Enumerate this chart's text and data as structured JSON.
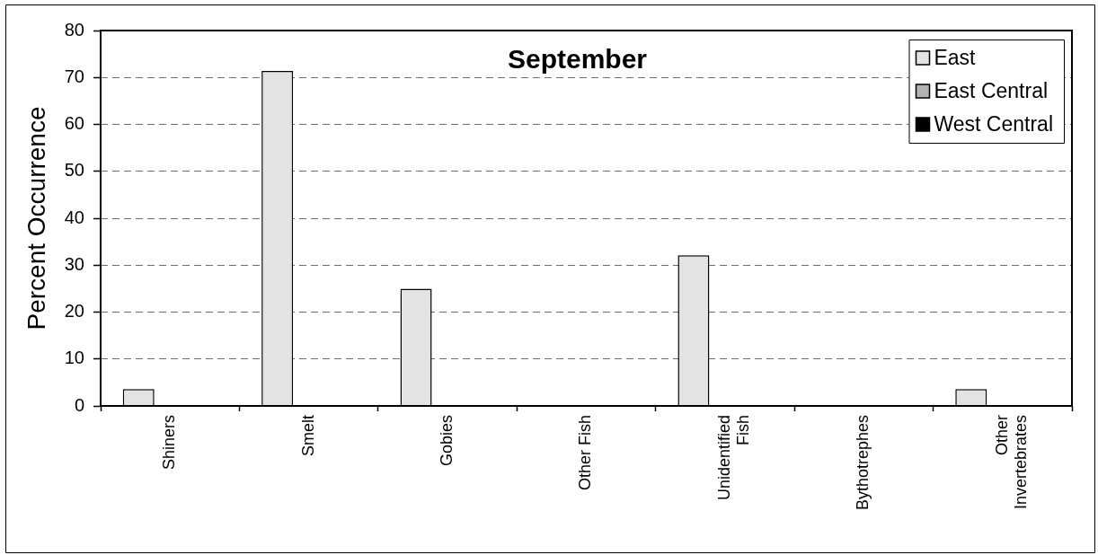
{
  "chart_data": {
    "type": "bar",
    "title": "September",
    "ylabel": "Percent Occurrence",
    "categories": [
      "Shiners",
      "Smelt",
      "Gobies",
      "Other Fish",
      "Unidentified Fish",
      "Bythotrephes",
      "Other Invertebrates"
    ],
    "series": [
      {
        "name": "East",
        "color": "#e3e3e3",
        "values": [
          3.6,
          71.4,
          25,
          0,
          32.1,
          0,
          3.6
        ]
      },
      {
        "name": "East Central",
        "color": "#b3b3b3",
        "values": [
          0,
          0,
          0,
          0,
          0,
          0,
          0
        ]
      },
      {
        "name": "West Central",
        "color": "#000000",
        "values": [
          0,
          0,
          0,
          0,
          0,
          0,
          0
        ]
      }
    ],
    "ylim": [
      0,
      80
    ],
    "yticks": [
      0,
      10,
      20,
      30,
      40,
      50,
      60,
      70,
      80
    ],
    "grid": "y",
    "legend": "top right"
  }
}
